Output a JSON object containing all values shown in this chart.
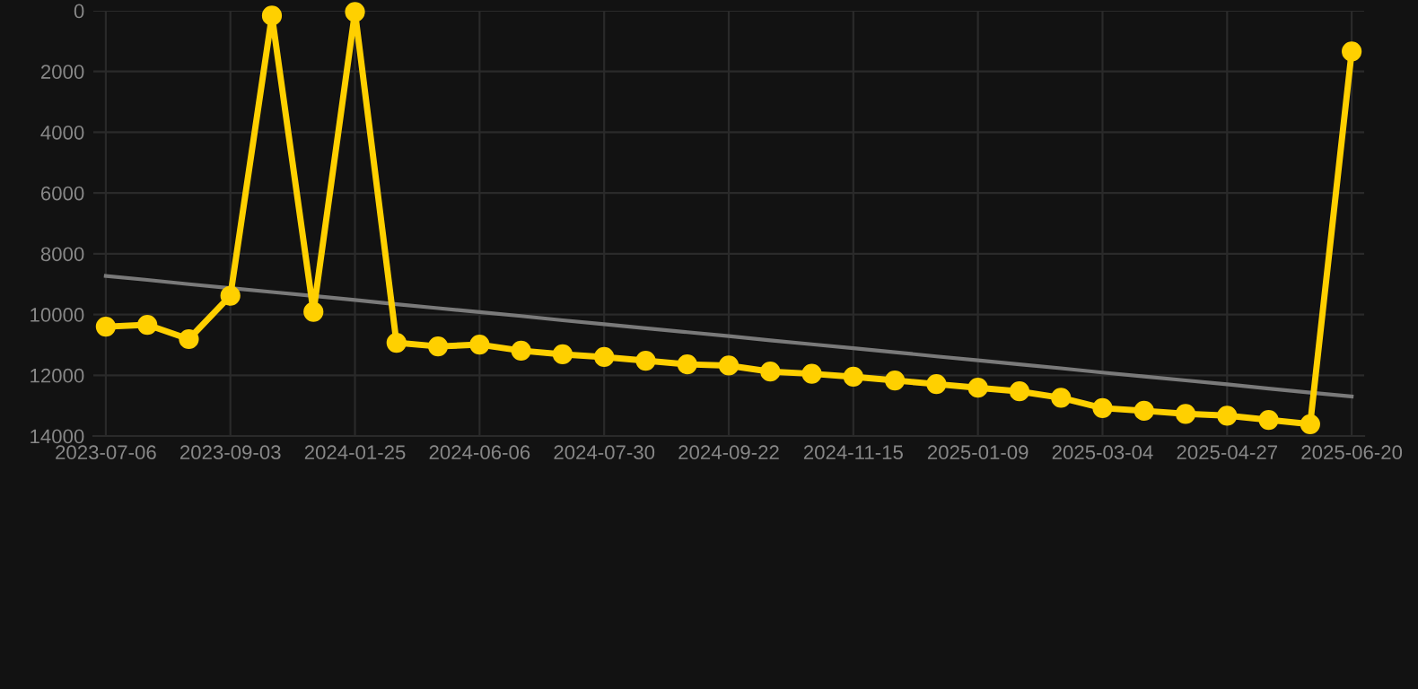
{
  "chart_data": {
    "type": "line",
    "categories": [
      "2023-07-06",
      null,
      null,
      "2023-09-03",
      null,
      null,
      "2024-01-25",
      null,
      null,
      "2024-06-06",
      null,
      null,
      "2024-07-30",
      null,
      null,
      "2024-09-22",
      null,
      null,
      "2024-11-15",
      null,
      null,
      "2025-01-09",
      null,
      null,
      "2025-03-04",
      null,
      null,
      "2025-04-27",
      null,
      null,
      "2025-06-20"
    ],
    "series": [
      {
        "color": "#ffd000",
        "marker": "circle",
        "values": [
          10400,
          10340,
          10810,
          9380,
          160,
          9910,
          40,
          10930,
          11050,
          10990,
          11190,
          11310,
          11400,
          11520,
          11640,
          11680,
          11880,
          11950,
          12050,
          12170,
          12290,
          12410,
          12530,
          12740,
          13080,
          13170,
          13270,
          13330,
          13470,
          13610,
          1340
        ]
      },
      {
        "color": "#7a7a7a",
        "marker": "none",
        "values": [
          8730,
          8860,
          9000,
          9130,
          9260,
          9390,
          9520,
          9660,
          9790,
          9920,
          10050,
          10190,
          10320,
          10450,
          10580,
          10710,
          10850,
          10980,
          11110,
          11240,
          11380,
          11510,
          11640,
          11770,
          11910,
          12040,
          12170,
          12300,
          12440,
          12570,
          12700
        ]
      }
    ],
    "ylim": [
      14000,
      0
    ],
    "yticks": [
      0,
      2000,
      4000,
      6000,
      8000,
      10000,
      12000,
      14000
    ],
    "grid": true,
    "legend": false
  }
}
